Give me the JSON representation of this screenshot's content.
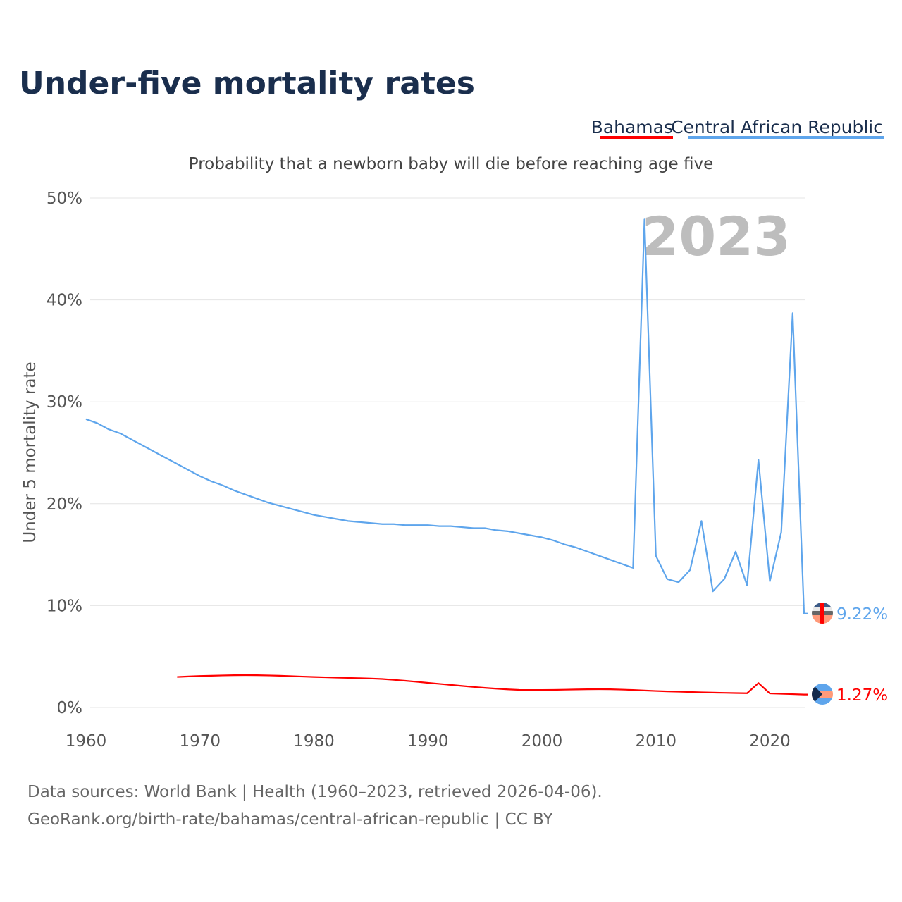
{
  "chart_data": {
    "type": "line",
    "title": "Under-five mortality rates",
    "subtitle": "Probability that a newborn baby will die before reaching age five",
    "ylabel": "Under 5 mortality rate",
    "xlabel": "",
    "xlim": [
      1960,
      2023
    ],
    "ylim": [
      0,
      50
    ],
    "x_ticks": [
      "1960",
      "1970",
      "1980",
      "1990",
      "2000",
      "2010",
      "2020"
    ],
    "y_ticks": [
      "0%",
      "10%",
      "20%",
      "30%",
      "40%",
      "50%"
    ],
    "grid": true,
    "legend_placement": "top-right",
    "year_label": "2023",
    "series": [
      {
        "name": "Bahamas",
        "color": "#ff0000",
        "end_label": "1.27%",
        "start_year": 1960,
        "values": [
          null,
          null,
          null,
          null,
          null,
          null,
          null,
          null,
          3.0,
          3.05,
          3.1,
          3.12,
          3.15,
          3.17,
          3.18,
          3.17,
          3.15,
          3.12,
          3.08,
          3.04,
          3.0,
          2.97,
          2.94,
          2.91,
          2.88,
          2.85,
          2.8,
          2.72,
          2.63,
          2.53,
          2.42,
          2.32,
          2.22,
          2.12,
          2.02,
          1.93,
          1.85,
          1.78,
          1.73,
          1.72,
          1.72,
          1.73,
          1.75,
          1.77,
          1.79,
          1.8,
          1.79,
          1.76,
          1.72,
          1.67,
          1.62,
          1.58,
          1.55,
          1.52,
          1.49,
          1.46,
          1.44,
          1.42,
          1.4,
          2.4,
          1.38,
          1.35,
          1.31,
          1.27
        ]
      },
      {
        "name": "Central African Republic",
        "color": "#5ea5ec",
        "end_label": "9.22%",
        "start_year": 1960,
        "values": [
          28.3,
          27.9,
          27.3,
          26.9,
          26.3,
          25.7,
          25.1,
          24.5,
          23.9,
          23.3,
          22.7,
          22.2,
          21.8,
          21.3,
          20.9,
          20.5,
          20.1,
          19.8,
          19.5,
          19.2,
          18.9,
          18.7,
          18.5,
          18.3,
          18.2,
          18.1,
          18.0,
          18.0,
          17.9,
          17.9,
          17.9,
          17.8,
          17.8,
          17.7,
          17.6,
          17.6,
          17.4,
          17.3,
          17.1,
          16.9,
          16.7,
          16.4,
          16.0,
          15.7,
          15.3,
          14.9,
          14.5,
          14.1,
          13.7,
          47.9,
          14.9,
          12.6,
          12.3,
          13.5,
          18.3,
          11.4,
          12.6,
          15.3,
          12.0,
          24.3,
          12.4,
          17.2,
          38.7,
          9.22
        ]
      }
    ]
  },
  "footer": {
    "line1": "Data sources: World Bank | Health (1960–2023, retrieved 2026-04-06).",
    "line2": "GeoRank.org/birth-rate/bahamas/central-african-republic | CC BY"
  }
}
